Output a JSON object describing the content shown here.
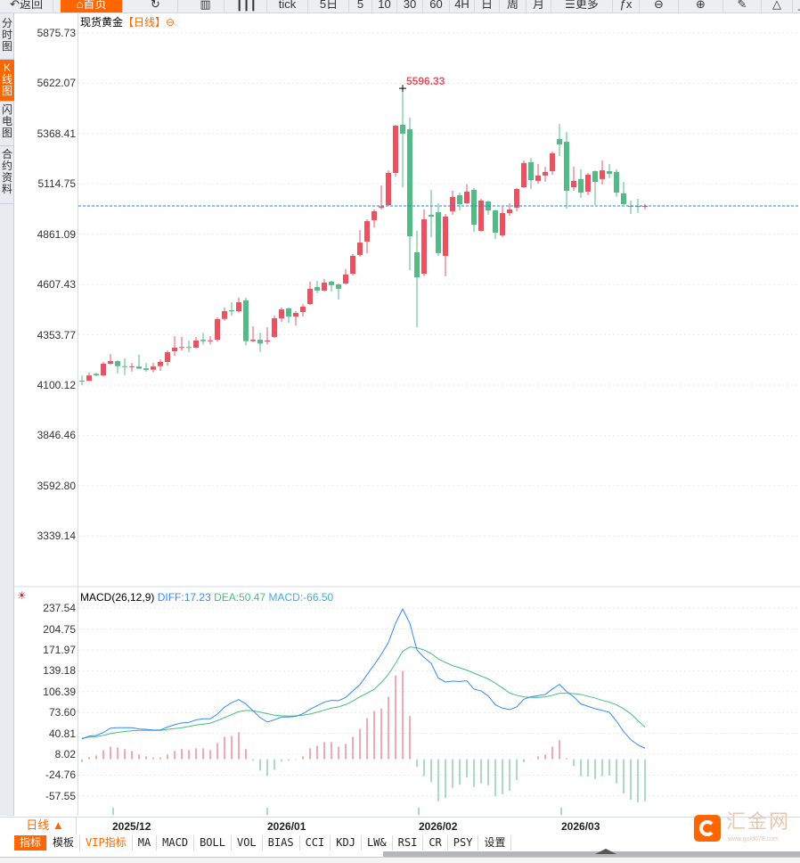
{
  "toolbar": {
    "items": [
      {
        "label": "↶返回",
        "name": "back-button"
      },
      {
        "label": "⌂首页",
        "name": "home-button",
        "active": true
      },
      {
        "label": "↻",
        "name": "refresh-icon"
      },
      {
        "label": "▥",
        "name": "bar-chart-icon"
      },
      {
        "label": "┃┃┃",
        "name": "candle-chart-icon"
      },
      {
        "label": "tick",
        "name": "tick-button"
      },
      {
        "label": "5日",
        "name": "5day-button"
      },
      {
        "label": "5",
        "name": "5min-button"
      },
      {
        "label": "10",
        "name": "10min-button"
      },
      {
        "label": "30",
        "name": "30min-button"
      },
      {
        "label": "60",
        "name": "60min-button"
      },
      {
        "label": "4H",
        "name": "4h-button"
      },
      {
        "label": "日",
        "name": "day-button"
      },
      {
        "label": "周",
        "name": "week-button"
      },
      {
        "label": "月",
        "name": "month-button"
      },
      {
        "label": "☰更多",
        "name": "more-button"
      },
      {
        "label": "ƒx",
        "name": "formula-icon"
      },
      {
        "label": "⊖",
        "name": "zoom-out-icon"
      },
      {
        "label": "⊕",
        "name": "zoom-in-icon"
      },
      {
        "label": "✎",
        "name": "pen-icon"
      },
      {
        "label": "△",
        "name": "triangle-icon"
      },
      {
        "label": "_",
        "name": "line-icon"
      }
    ]
  },
  "sidebar": {
    "tabs": [
      {
        "label": "分时图"
      },
      {
        "label": "K线图",
        "active": true
      },
      {
        "label": "闪电图"
      },
      {
        "label": "合约资料"
      }
    ]
  },
  "chart_title": {
    "name": "现货黄金",
    "period": "【日线】",
    "icon": "⊖"
  },
  "colors": {
    "up": "#ef5060",
    "down": "#52bb86",
    "diff": "#3388ff",
    "dea": "#44c07c",
    "last_line": "#1e7fe8",
    "accent": "#ff6600"
  },
  "chart_data": [
    {
      "type": "candlestick",
      "title": "现货黄金 日线",
      "ylim": [
        3339.14,
        5875.73
      ],
      "y_ticks": [
        "5875.73",
        "5622.07",
        "5368.41",
        "5114.75",
        "4861.09",
        "4607.43",
        "4353.77",
        "4100.12",
        "3846.46",
        "3592.80",
        "3339.14"
      ],
      "x_ticks": [
        "2025/12",
        "2026/01",
        "2026/02",
        "2026/03"
      ],
      "max_label": "5596.33",
      "last_price": 5003.6,
      "ohlc": [
        [
          4123,
          4149,
          4100,
          4122
        ],
        [
          4122,
          4163,
          4120,
          4149
        ],
        [
          4157,
          4162,
          4145,
          4149
        ],
        [
          4149,
          4217,
          4145,
          4208
        ],
        [
          4208,
          4257,
          4203,
          4221
        ],
        [
          4221,
          4226,
          4158,
          4196
        ],
        [
          4196,
          4235,
          4150,
          4194
        ],
        [
          4193,
          4212,
          4168,
          4195
        ],
        [
          4194,
          4253,
          4182,
          4183
        ],
        [
          4185,
          4212,
          4167,
          4177
        ],
        [
          4178,
          4212,
          4165,
          4194
        ],
        [
          4196,
          4230,
          4172,
          4217
        ],
        [
          4217,
          4275,
          4198,
          4266
        ],
        [
          4271,
          4347,
          4248,
          4289
        ],
        [
          4289,
          4343,
          4275,
          4292
        ],
        [
          4292,
          4325,
          4266,
          4291
        ],
        [
          4289,
          4343,
          4285,
          4325
        ],
        [
          4329,
          4365,
          4305,
          4322
        ],
        [
          4322,
          4347,
          4305,
          4326
        ],
        [
          4329,
          4442,
          4320,
          4433
        ],
        [
          4434,
          4491,
          4425,
          4473
        ],
        [
          4478,
          4518,
          4450,
          4472
        ],
        [
          4473,
          4541,
          4466,
          4518
        ],
        [
          4527,
          4541,
          4300,
          4322
        ],
        [
          4322,
          4397,
          4317,
          4329
        ],
        [
          4329,
          4365,
          4268,
          4310
        ],
        [
          4320,
          4392,
          4305,
          4325
        ],
        [
          4343,
          4450,
          4338,
          4437
        ],
        [
          4437,
          4491,
          4419,
          4482
        ],
        [
          4487,
          4492,
          4415,
          4446
        ],
        [
          4446,
          4473,
          4401,
          4464
        ],
        [
          4469,
          4509,
          4446,
          4496
        ],
        [
          4509,
          4622,
          4505,
          4586
        ],
        [
          4595,
          4626,
          4563,
          4577
        ],
        [
          4577,
          4635,
          4572,
          4617
        ],
        [
          4622,
          4626,
          4572,
          4604
        ],
        [
          4608,
          4613,
          4532,
          4586
        ],
        [
          4613,
          4685,
          4608,
          4658
        ],
        [
          4662,
          4761,
          4653,
          4752
        ],
        [
          4756,
          4882,
          4747,
          4819
        ],
        [
          4824,
          4936,
          4765,
          4927
        ],
        [
          4932,
          4986,
          4896,
          4977
        ],
        [
          4995,
          5107,
          4986,
          5001
        ],
        [
          5008,
          5183,
          5003,
          5170
        ],
        [
          5170,
          5413,
          5152,
          5408
        ],
        [
          5413,
          5596.33,
          5098,
          5368
        ],
        [
          5390,
          5449,
          4680,
          4851
        ],
        [
          4770,
          4878,
          4392,
          4644
        ],
        [
          4662,
          4986,
          4650,
          4936
        ],
        [
          4959,
          5085,
          4846,
          4950
        ],
        [
          4972,
          5017,
          4752,
          4766
        ],
        [
          4752,
          4963,
          4649,
          4950
        ],
        [
          4977,
          5080,
          4959,
          5049
        ],
        [
          5058,
          5071,
          4981,
          5013
        ],
        [
          5017,
          5112,
          5013,
          5076
        ],
        [
          5085,
          5094,
          4873,
          4909
        ],
        [
          4878,
          5040,
          4875,
          5031
        ],
        [
          5026,
          5031,
          4959,
          4981
        ],
        [
          4981,
          4985,
          4837,
          4869
        ],
        [
          4855,
          4999,
          4846,
          4968
        ],
        [
          4968,
          5017,
          4954,
          4986
        ],
        [
          4995,
          5094,
          4977,
          5089
        ],
        [
          5098,
          5233,
          5094,
          5220
        ],
        [
          5224,
          5246,
          5089,
          5134
        ],
        [
          5130,
          5215,
          5116,
          5157
        ],
        [
          5157,
          5201,
          5125,
          5175
        ],
        [
          5179,
          5278,
          5161,
          5269
        ],
        [
          5341,
          5417,
          5255,
          5314
        ],
        [
          5327,
          5377,
          4990,
          5080
        ],
        [
          5098,
          5201,
          5080,
          5130
        ],
        [
          5139,
          5188,
          5044,
          5071
        ],
        [
          5076,
          5170,
          5058,
          5161
        ],
        [
          5179,
          5183,
          5008,
          5125
        ],
        [
          5139,
          5233,
          5112,
          5183
        ],
        [
          5179,
          5215,
          5143,
          5166
        ],
        [
          5175,
          5188,
          5049,
          5071
        ],
        [
          5067,
          5125,
          5008,
          5013
        ],
        [
          5004,
          5031,
          4963,
          5002
        ],
        [
          5003,
          5040,
          4968,
          5001
        ],
        [
          5000,
          5013,
          4986,
          5003
        ]
      ]
    },
    {
      "type": "macd",
      "title": "MACD(26,12,9)",
      "legend": {
        "diff": "DIFF:17.23",
        "dea": "DEA:50.47",
        "macd": "MACD:-66.50"
      },
      "ylim": [
        -57.55,
        237.54
      ],
      "y_ticks": [
        "237.54",
        "204.75",
        "171.97",
        "139.18",
        "106.39",
        "73.60",
        "40.81",
        "8.02",
        "-24.76",
        "-57.55"
      ],
      "diff": [
        32,
        36.6,
        37.6,
        42,
        49,
        49.7,
        49.7,
        49.7,
        47.8,
        47,
        46,
        46,
        50.7,
        54.4,
        57.2,
        58,
        61.9,
        63.7,
        63.7,
        71,
        82,
        89,
        94,
        87,
        76.3,
        65.6,
        58.6,
        62,
        66.5,
        66.5,
        67.5,
        71.7,
        78.7,
        84.3,
        89.9,
        92.7,
        92.2,
        97.3,
        107.6,
        117.4,
        133,
        148.7,
        165,
        183.7,
        214,
        236.4,
        214,
        172,
        160.3,
        151,
        127.7,
        121.6,
        123,
        122.5,
        123.5,
        110.4,
        107.6,
        99.7,
        85.7,
        80.5,
        78.2,
        82.4,
        94.5,
        98.3,
        100.1,
        102,
        110.4,
        117.9,
        106.7,
        98.3,
        87,
        83.3,
        79.6,
        76.8,
        74,
        60,
        43.6,
        31,
        22.7,
        17.23
      ],
      "dea": [
        33,
        34.8,
        35.7,
        37.6,
        40.4,
        42.3,
        43.7,
        45,
        45.5,
        45.5,
        45.5,
        45.5,
        47,
        48.3,
        49.7,
        51.6,
        53.9,
        55.3,
        56.7,
        60.9,
        65.6,
        70.3,
        74.9,
        76.8,
        76.3,
        74,
        71.7,
        69.3,
        68.4,
        67.9,
        68.4,
        69.3,
        71.2,
        74,
        77.3,
        80.5,
        82.4,
        86.1,
        91.7,
        98.3,
        104,
        110,
        120.7,
        133.7,
        151,
        169.7,
        176.7,
        175.3,
        172,
        166.4,
        158,
        152.4,
        147.3,
        144,
        140.3,
        135.6,
        131,
        126.3,
        119.7,
        112.3,
        104.3,
        100.6,
        98.3,
        97.3,
        97.3,
        98.3,
        100.6,
        103.9,
        103.9,
        103.4,
        102,
        99.2,
        96.4,
        92.7,
        89.9,
        85.7,
        79.6,
        71.7,
        60.9,
        50.47
      ],
      "macd": [
        -4.7,
        3.3,
        6,
        14.5,
        20,
        18.7,
        16,
        13,
        7.5,
        4.7,
        2.8,
        2.8,
        7.5,
        13,
        16,
        14.5,
        17.3,
        17.3,
        14.5,
        25.7,
        35.5,
        37,
        42.5,
        16,
        -2.3,
        -17.8,
        -26.2,
        -16.4,
        -3.7,
        -2.3,
        -1,
        4.7,
        17.3,
        21.5,
        27,
        27,
        20,
        24.3,
        35.5,
        48,
        65,
        76,
        80,
        98.6,
        132,
        139,
        68,
        -12,
        -27,
        -36,
        -66,
        -61,
        -45,
        -40,
        -28.5,
        -44,
        -38,
        -41,
        -58,
        -55,
        -49.5,
        -32.7,
        -4.7,
        -0.5,
        4.7,
        7.5,
        20,
        30,
        2,
        -10.7,
        -27,
        -27,
        -31,
        -27,
        -25.7,
        -38,
        -53.7,
        -63.5,
        -67.7,
        -66.5
      ]
    }
  ],
  "bottom": {
    "period_button": "日线 ▲",
    "tabs": [
      {
        "label": "指标",
        "active": true
      },
      {
        "label": "模板"
      },
      {
        "label": "VIP指标",
        "vip": true
      },
      {
        "label": "MA"
      },
      {
        "label": "MACD"
      },
      {
        "label": "BOLL"
      },
      {
        "label": "VOL"
      },
      {
        "label": "BIAS"
      },
      {
        "label": "CCI"
      },
      {
        "label": "KDJ"
      },
      {
        "label": "LW&"
      },
      {
        "label": "RSI"
      },
      {
        "label": "CR"
      },
      {
        "label": "PSY"
      },
      {
        "label": "设置"
      }
    ]
  },
  "logo": {
    "text": "汇金网",
    "url_text": "www.gold678.com"
  }
}
